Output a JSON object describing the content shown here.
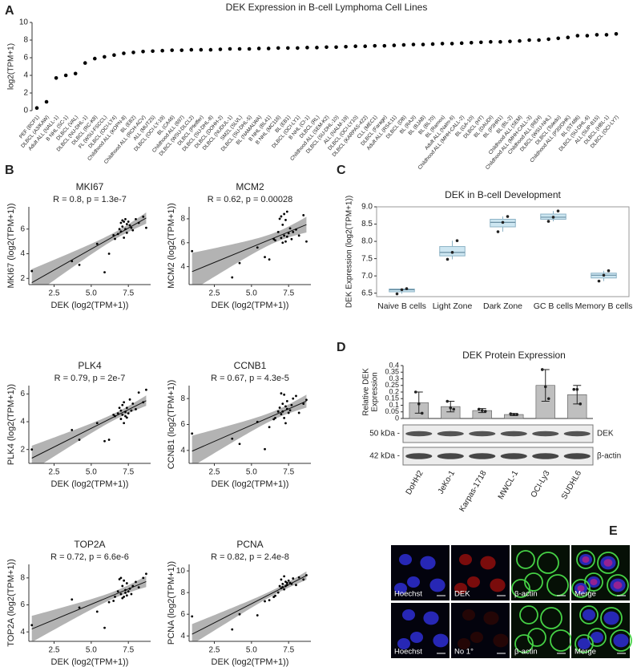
{
  "panel_labels": [
    "A",
    "B",
    "C",
    "D",
    "E"
  ],
  "chart_data": [
    {
      "type": "dot",
      "title": "DEK Expression in B-cell Lymphoma Cell Lines",
      "ylabel": "log2(TPM+1)",
      "categories": [
        "PEF (BCP1)",
        "DLBCL (A3/KAW)",
        "Adult ALL (NALL-1)",
        "B NHL (SC-1)",
        "DLBCL (VAL)",
        "DLBCL (NU-DHL-1)",
        "DLBCL (RC-K8)",
        "FL (WSU-FSCCL)",
        "DLBCL (OCI-LY4)",
        "Childhood ALL (KOPN-8)",
        "BL (EB2)",
        "Childhood ALL (RCH-ACV)",
        "ALL (MUTZ5)",
        "DLBCL (OCI-LY-19)",
        "BL (CA46)",
        "Childhood ALL (697)",
        "DLBCL (WSU-DLCL2)",
        "DLBCL (Pfeiffer)",
        "DLBCL (SU-DHL-8)",
        "DLBCL (DOHH-2)",
        "DLBCL (NUDUL-1)",
        "SMZL (SLVL)",
        "DLBCL (SU-DHL-5)",
        "BL (NAMALWA)",
        "B NHL (BL41)",
        "B NHL (MC116)",
        "BL (EB1)",
        "DLBCL (OCI-LY1)",
        "B NHL (CI-1)",
        "DLBCL (RL)",
        "Childhood ALL (SEM-K2)",
        "DLBCL (SU-DHL-10)",
        "ALL (NALM-19)",
        "DLBCL (OCI-LY10)",
        "DLBCL (KARPAS-422)",
        "CLL (MEC1)",
        "DLBCL (Farage)",
        "Adult ALL (RS4;11)",
        "DLBCL (DB)",
        "BL (RAJI)",
        "BL (BJAB)",
        "BL (BL70)",
        "BL (Ramos)",
        "Adult ALL (Nalm-6)",
        "Childhood ALL (MHH-CALL-2)",
        "BL (GA-10)",
        "DLBCL (HT)",
        "BL (DAUDI)",
        "BL (P3HR1)",
        "BL (BL-2)",
        "Childhood ALL (SEM)",
        "Childhood ALL (MHH-CALL-3)",
        "Childhood ALL (REH)",
        "DLBCL (WSU-NHL)",
        "DLBCL (Toledo)",
        "Childhood ALL (P30/OHK)",
        "BL (ST486)",
        "DLBCL (SU-DHL-6)",
        "ALL (SUP-B15)",
        "DLBCL (HBL-1)",
        "DLBCL (OCI-LY7)"
      ],
      "values": [
        0.3,
        1.0,
        3.7,
        4.0,
        4.2,
        5.4,
        5.9,
        6.1,
        6.3,
        6.5,
        6.6,
        6.7,
        6.75,
        6.8,
        6.85,
        6.85,
        6.9,
        6.9,
        6.9,
        6.95,
        7.0,
        7.0,
        7.0,
        7.05,
        7.05,
        7.1,
        7.1,
        7.1,
        7.15,
        7.15,
        7.2,
        7.2,
        7.25,
        7.3,
        7.3,
        7.35,
        7.35,
        7.4,
        7.45,
        7.5,
        7.5,
        7.55,
        7.6,
        7.6,
        7.65,
        7.7,
        7.75,
        7.8,
        7.8,
        7.85,
        7.9,
        8.0,
        8.0,
        8.1,
        8.2,
        8.3,
        8.5,
        8.5,
        8.6,
        8.6,
        8.7
      ],
      "color": "#000000",
      "ylim": [
        0,
        10
      ],
      "yticks": [
        0,
        2,
        4,
        6,
        8,
        10
      ]
    },
    {
      "type": "scatter",
      "title": "MKI67",
      "annotation": "R = 0.8, p = 1.3e-7",
      "xlabel": "DEK (log2(TPM+1))",
      "ylabel": "MKI67 (log2(TPM+1))",
      "x": [
        1.0,
        3.7,
        4.2,
        5.4,
        5.9,
        6.2,
        6.6,
        6.8,
        6.9,
        7.0,
        7.0,
        7.1,
        7.1,
        7.2,
        7.2,
        7.3,
        7.3,
        7.4,
        7.4,
        7.5,
        7.6,
        7.7,
        7.8,
        8.0,
        8.2,
        8.5,
        8.7,
        6.5
      ],
      "y": [
        2.6,
        3.4,
        3.1,
        4.8,
        2.5,
        4.0,
        5.2,
        5.6,
        6.0,
        6.5,
        5.8,
        6.7,
        6.2,
        6.6,
        5.3,
        6.8,
        6.0,
        6.4,
        5.7,
        6.6,
        6.3,
        6.1,
        5.9,
        6.8,
        6.5,
        7.0,
        6.1,
        5.5
      ],
      "color": "#000000",
      "regression": true,
      "band_color": "#b3b3b3",
      "xlim": [
        0.8,
        9
      ],
      "xticks": [
        2.5,
        {
          "value": 5,
          "label": "5.0"
        },
        7.5
      ],
      "ylim": [
        1.5,
        7.8
      ],
      "yticks": [
        2,
        4,
        6
      ]
    },
    {
      "type": "scatter",
      "title": "MCM2",
      "annotation": "R = 0.62, p = 0.00028",
      "xlabel": "DEK (log2(TPM+1))",
      "ylabel": "MCM2 (log2(TPM+1))",
      "x": [
        1.0,
        3.7,
        4.2,
        5.4,
        5.9,
        6.2,
        6.6,
        6.8,
        6.9,
        7.0,
        7.0,
        7.1,
        7.1,
        7.2,
        7.2,
        7.3,
        7.3,
        7.4,
        7.4,
        7.5,
        7.6,
        7.7,
        7.8,
        8.0,
        8.2,
        8.5,
        8.7,
        6.5
      ],
      "y": [
        5.3,
        3.1,
        4.3,
        5.6,
        4.8,
        4.6,
        6.2,
        6.9,
        8.0,
        6.4,
        8.2,
        7.5,
        6.0,
        8.4,
        6.6,
        7.9,
        6.1,
        6.5,
        8.6,
        6.8,
        7.2,
        6.3,
        6.9,
        7.1,
        6.6,
        8.3,
        6.1,
        6.3
      ],
      "color": "#000000",
      "regression": true,
      "band_color": "#b3b3b3",
      "xlim": [
        0.8,
        9
      ],
      "xticks": [
        2.5,
        {
          "value": 5,
          "label": "5.0"
        },
        7.5
      ],
      "ylim": [
        2.5,
        9
      ],
      "yticks": [
        4,
        6,
        8
      ]
    },
    {
      "type": "scatter",
      "title": "PLK4",
      "annotation": "R = 0.79, p = 2e-7",
      "xlabel": "DEK (log2(TPM+1))",
      "ylabel": "PLK4 (log2(TPM+1))",
      "x": [
        1.0,
        3.7,
        4.2,
        5.4,
        5.9,
        6.2,
        6.6,
        6.8,
        6.9,
        7.0,
        7.0,
        7.1,
        7.1,
        7.2,
        7.2,
        7.3,
        7.3,
        7.4,
        7.4,
        7.5,
        7.6,
        7.7,
        7.8,
        8.0,
        8.2,
        8.5,
        8.7,
        6.5
      ],
      "y": [
        2.0,
        3.4,
        2.7,
        3.9,
        2.6,
        2.7,
        4.4,
        4.6,
        5.0,
        4.2,
        4.8,
        5.2,
        4.5,
        5.4,
        3.9,
        4.7,
        4.4,
        5.0,
        4.3,
        4.6,
        5.6,
        4.8,
        5.3,
        4.9,
        6.1,
        5.4,
        6.3,
        4.5
      ],
      "color": "#000000",
      "regression": true,
      "band_color": "#b3b3b3",
      "xlim": [
        0.8,
        9
      ],
      "xticks": [
        2.5,
        {
          "value": 5,
          "label": "5.0"
        },
        7.5
      ],
      "ylim": [
        1,
        6.6
      ],
      "yticks": [
        2,
        4,
        6
      ]
    },
    {
      "type": "scatter",
      "title": "CCNB1",
      "annotation": "R = 0.67, p = 4.3e-5",
      "xlabel": "DEK (log2(TPM+1))",
      "ylabel": "CCNB1 (log2(TPM+1))",
      "x": [
        1.0,
        3.7,
        4.2,
        5.4,
        5.9,
        6.2,
        6.6,
        6.8,
        6.9,
        7.0,
        7.0,
        7.1,
        7.1,
        7.2,
        7.2,
        7.3,
        7.3,
        7.4,
        7.4,
        7.5,
        7.6,
        7.7,
        7.8,
        8.0,
        8.2,
        8.5,
        8.7,
        6.5
      ],
      "y": [
        5.3,
        4.9,
        4.5,
        6.2,
        4.1,
        5.8,
        6.5,
        7.0,
        7.3,
        6.8,
        8.4,
        7.6,
        7.0,
        8.3,
        6.5,
        7.4,
        6.1,
        7.8,
        7.2,
        6.9,
        7.1,
        7.5,
        8.0,
        8.2,
        6.9,
        7.6,
        7.9,
        6.4
      ],
      "color": "#000000",
      "regression": true,
      "band_color": "#b3b3b3",
      "xlim": [
        0.8,
        9
      ],
      "xticks": [
        2.5,
        {
          "value": 5,
          "label": "5.0"
        },
        7.5
      ],
      "ylim": [
        3,
        9
      ],
      "yticks": [
        4,
        6,
        8
      ]
    },
    {
      "type": "scatter",
      "title": "TOP2A",
      "annotation": "R = 0.72, p = 6.6e-6",
      "xlabel": "DEK (log2(TPM+1))",
      "ylabel": "TOP2A (log2(TPM+1))",
      "x": [
        1.0,
        3.7,
        4.2,
        5.4,
        5.9,
        6.2,
        6.6,
        6.8,
        6.9,
        7.0,
        7.0,
        7.1,
        7.1,
        7.2,
        7.2,
        7.3,
        7.3,
        7.4,
        7.4,
        7.5,
        7.6,
        7.7,
        7.8,
        8.0,
        8.2,
        8.5,
        8.7,
        6.5
      ],
      "y": [
        4.5,
        6.4,
        5.8,
        5.5,
        4.3,
        6.2,
        6.6,
        7.0,
        7.9,
        6.8,
        8.0,
        7.4,
        6.5,
        7.8,
        6.6,
        7.1,
        6.9,
        7.6,
        6.7,
        7.0,
        7.2,
        6.8,
        7.4,
        7.7,
        7.3,
        8.0,
        8.3,
        6.3
      ],
      "color": "#000000",
      "regression": true,
      "band_color": "#b3b3b3",
      "xlim": [
        0.8,
        9
      ],
      "xticks": [
        2.5,
        {
          "value": 5,
          "label": "5.0"
        },
        7.5
      ],
      "ylim": [
        3.3,
        9
      ],
      "yticks": [
        4,
        6,
        8
      ]
    },
    {
      "type": "scatter",
      "title": "PCNA",
      "annotation": "R = 0.82, p = 2.4e-8",
      "xlabel": "DEK (log2(TPM+1))",
      "ylabel": "PCNA (log2(TPM+1))",
      "x": [
        1.0,
        3.7,
        4.2,
        5.4,
        5.9,
        6.2,
        6.6,
        6.8,
        6.9,
        7.0,
        7.0,
        7.1,
        7.1,
        7.2,
        7.2,
        7.3,
        7.3,
        7.4,
        7.4,
        7.5,
        7.6,
        7.7,
        7.8,
        8.0,
        8.2,
        8.5,
        8.7,
        6.5
      ],
      "y": [
        5.8,
        4.6,
        6.0,
        5.9,
        7.2,
        7.3,
        7.7,
        8.0,
        8.6,
        8.4,
        9.2,
        8.8,
        8.5,
        9.5,
        8.3,
        9.0,
        8.6,
        8.9,
        8.7,
        9.1,
        8.9,
        8.8,
        9.3,
        8.7,
        9.4,
        9.2,
        9.6,
        7.6
      ],
      "color": "#000000",
      "regression": true,
      "band_color": "#b3b3b3",
      "xlim": [
        0.8,
        9
      ],
      "xticks": [
        2.5,
        {
          "value": 5,
          "label": "5.0"
        },
        7.5
      ],
      "ylim": [
        3.5,
        10.6
      ],
      "yticks": [
        4,
        6,
        8,
        10
      ]
    },
    {
      "type": "box",
      "title": "DEK in B-cell Development",
      "ylabel": "DEK Expression (log2(TPM+1))",
      "categories": [
        "Naive B cells",
        "Light Zone",
        "Dark Zone",
        "GC B cells",
        "Memory B cells"
      ],
      "min": [
        6.48,
        7.48,
        8.28,
        8.58,
        6.85
      ],
      "q1": [
        6.54,
        7.58,
        8.42,
        8.64,
        6.94
      ],
      "median": [
        6.6,
        7.68,
        8.55,
        8.7,
        7.02
      ],
      "q3": [
        6.62,
        7.85,
        8.64,
        8.79,
        7.08
      ],
      "max": [
        6.63,
        8.02,
        8.72,
        8.88,
        7.15
      ],
      "points": [
        [
          6.48,
          6.6,
          6.63
        ],
        [
          7.48,
          7.68,
          8.02
        ],
        [
          8.28,
          8.55,
          8.72
        ],
        [
          8.58,
          8.7,
          8.88
        ],
        [
          6.85,
          7.02,
          7.15
        ]
      ],
      "color": "#cde6f1",
      "edge_color": "#8db3c6",
      "ylim": [
        6.4,
        9.0
      ],
      "yticks": [
        6.5,
        {
          "value": 7,
          "label": "7.0"
        },
        7.5,
        {
          "value": 8,
          "label": "8.0"
        },
        8.5,
        {
          "value": 9,
          "label": "9.0"
        }
      ]
    },
    {
      "type": "bar",
      "title": "DEK Protein Expression",
      "ylabel": [
        "Relative DEK",
        "Expression"
      ],
      "categories": [
        "DoHH2",
        "JeKo-1",
        "Karpas-1718",
        "MWCL-1",
        "OCI-Ly3",
        "SUDHL6"
      ],
      "values": [
        0.12,
        0.09,
        0.06,
        0.03,
        0.25,
        0.18
      ],
      "errors": [
        0.08,
        0.04,
        0.015,
        0.008,
        0.12,
        0.07
      ],
      "points": [
        [
          0.2,
          0.11,
          0.04
        ],
        [
          0.13,
          0.08,
          0.07
        ],
        [
          0.07,
          0.06,
          0.055
        ],
        [
          0.035,
          0.03,
          0.03
        ],
        [
          0.37,
          0.24,
          0.15
        ],
        [
          0.22,
          0.22,
          0.11
        ]
      ],
      "color": "#bfbfbf",
      "ylim": [
        0,
        0.4
      ],
      "yticks": [
        0,
        0.05,
        0.1,
        0.15,
        0.2,
        0.25,
        0.3,
        0.35,
        0.4
      ]
    }
  ],
  "blot": {
    "rows": [
      {
        "marker": "50 kDa -",
        "protein": "DEK"
      },
      {
        "marker": "42 kDa -",
        "protein": "β-actin"
      }
    ]
  },
  "microscopy": {
    "rows": [
      [
        "Hoechst",
        "DEK",
        "β-actin",
        "Merge"
      ],
      [
        "Hoechst",
        "No 1°",
        "β-actin",
        "Merge"
      ]
    ]
  }
}
